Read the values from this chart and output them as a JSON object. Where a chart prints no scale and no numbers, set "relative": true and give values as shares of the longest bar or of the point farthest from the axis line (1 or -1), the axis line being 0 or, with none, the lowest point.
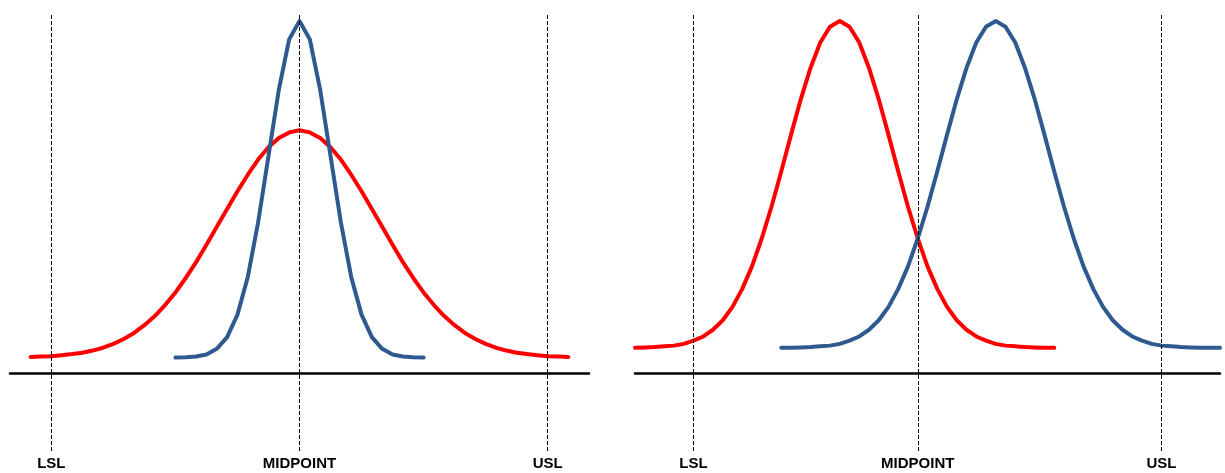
{
  "chart_data": [
    {
      "type": "line",
      "relative": true,
      "marker": "none",
      "line_style": "solid",
      "categories": [
        null,
        null,
        null,
        null,
        "LSL",
        null,
        null,
        null,
        null,
        null,
        null,
        null,
        null,
        null,
        null,
        null,
        null,
        null,
        null,
        null,
        null,
        null,
        null,
        null,
        null,
        null,
        null,
        null,
        "MIDPOINT",
        null,
        null,
        null,
        null,
        null,
        null,
        null,
        null,
        null,
        null,
        null,
        null,
        null,
        null,
        null,
        null,
        null,
        null,
        null,
        null,
        null,
        null,
        null,
        "USL",
        null,
        null,
        null,
        null
      ],
      "series": [
        {
          "color": "#ff0000",
          "values": [
            null,
            null,
            0.047,
            0.048,
            0.049,
            0.052,
            0.055,
            0.059,
            0.065,
            0.073,
            0.084,
            0.098,
            0.115,
            0.137,
            0.163,
            0.194,
            0.23,
            0.271,
            0.316,
            0.365,
            0.416,
            0.467,
            0.517,
            0.564,
            0.607,
            0.642,
            0.668,
            0.684,
            0.69,
            0.684,
            0.668,
            0.642,
            0.607,
            0.564,
            0.517,
            0.467,
            0.416,
            0.365,
            0.316,
            0.271,
            0.23,
            0.194,
            0.163,
            0.137,
            0.115,
            0.098,
            0.084,
            0.073,
            0.065,
            0.059,
            0.055,
            0.052,
            0.049,
            0.048,
            0.047,
            null,
            null
          ]
        },
        {
          "color": "#2f5a8f",
          "values": [
            null,
            null,
            null,
            null,
            null,
            null,
            null,
            null,
            null,
            null,
            null,
            null,
            null,
            null,
            null,
            null,
            0.045,
            0.046,
            0.048,
            0.054,
            0.07,
            0.103,
            0.167,
            0.274,
            0.429,
            0.617,
            0.805,
            0.948,
            1,
            0.948,
            0.805,
            0.617,
            0.429,
            0.274,
            0.167,
            0.103,
            0.07,
            0.054,
            0.048,
            0.046,
            0.045,
            null,
            null,
            null,
            null,
            null,
            null,
            null,
            null,
            null,
            null,
            null,
            null,
            null,
            null,
            null,
            null
          ]
        }
      ],
      "ref_lines": [
        {
          "axis": "x",
          "value": "LSL",
          "color": "#000000",
          "line_style": "dashed"
        },
        {
          "axis": "x",
          "value": "MIDPOINT",
          "color": "#000000",
          "line_style": "dashed"
        },
        {
          "axis": "x",
          "value": "USL",
          "color": "#000000",
          "line_style": "dashed"
        }
      ]
    },
    {
      "type": "line",
      "relative": true,
      "marker": "none",
      "line_style": "solid",
      "categories": [
        null,
        null,
        null,
        null,
        null,
        null,
        "LSL",
        null,
        null,
        null,
        null,
        null,
        null,
        null,
        null,
        null,
        null,
        null,
        null,
        null,
        null,
        null,
        null,
        null,
        null,
        null,
        null,
        null,
        null,
        "MIDPOINT",
        null,
        null,
        null,
        null,
        null,
        null,
        null,
        null,
        null,
        null,
        null,
        null,
        null,
        null,
        null,
        null,
        null,
        null,
        null,
        null,
        null,
        null,
        null,
        null,
        "USL",
        null,
        null,
        null,
        null,
        null,
        null
      ],
      "series": [
        {
          "color": "#ff0000",
          "values": [
            0.073,
            0.074,
            0.075,
            0.077,
            0.079,
            0.084,
            0.093,
            0.105,
            0.124,
            0.151,
            0.189,
            0.24,
            0.304,
            0.383,
            0.473,
            0.573,
            0.677,
            0.778,
            0.867,
            0.939,
            0.984,
            1,
            0.984,
            0.939,
            0.867,
            0.778,
            0.677,
            0.573,
            0.473,
            0.383,
            0.304,
            0.24,
            0.189,
            0.151,
            0.124,
            0.105,
            0.093,
            0.084,
            0.079,
            0.077,
            0.075,
            0.074,
            0.073,
            0.073,
            null,
            null,
            null,
            null,
            null,
            null,
            null,
            null,
            null,
            null,
            null,
            null,
            null,
            null,
            null,
            null,
            null
          ]
        },
        {
          "color": "#2f5a8f",
          "values": [
            null,
            null,
            null,
            null,
            null,
            null,
            null,
            null,
            null,
            null,
            null,
            null,
            null,
            null,
            null,
            0.073,
            0.073,
            0.074,
            0.075,
            0.077,
            0.079,
            0.084,
            0.093,
            0.105,
            0.124,
            0.151,
            0.189,
            0.24,
            0.304,
            0.383,
            0.473,
            0.573,
            0.677,
            0.778,
            0.867,
            0.939,
            0.984,
            1,
            0.984,
            0.939,
            0.867,
            0.778,
            0.677,
            0.573,
            0.473,
            0.383,
            0.304,
            0.24,
            0.189,
            0.151,
            0.124,
            0.105,
            0.093,
            0.084,
            0.079,
            0.077,
            0.075,
            0.074,
            0.073,
            0.073,
            0.073
          ]
        }
      ],
      "ref_lines": [
        {
          "axis": "x",
          "value": "LSL",
          "color": "#000000",
          "line_style": "dashed"
        },
        {
          "axis": "x",
          "value": "MIDPOINT",
          "color": "#000000",
          "line_style": "dashed"
        },
        {
          "axis": "x",
          "value": "USL",
          "color": "#000000",
          "line_style": "dashed"
        }
      ]
    }
  ]
}
